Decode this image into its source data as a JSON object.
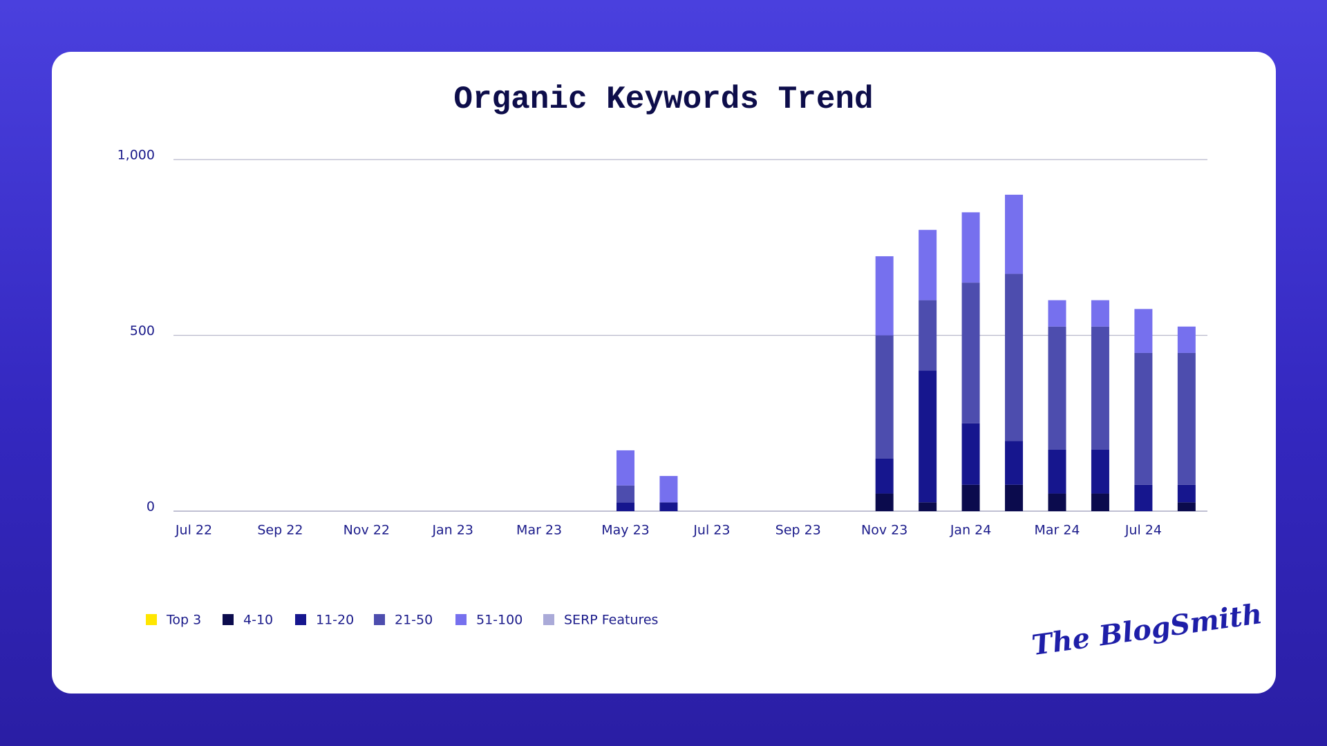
{
  "chart_data": {
    "type": "stacked_bar",
    "title": "Organic Keywords Trend",
    "categories": [
      "Jul 22",
      null,
      "Sep 22",
      null,
      "Nov 22",
      null,
      "Jan 23",
      null,
      "Mar 23",
      null,
      "May 23",
      null,
      "Jul 23",
      null,
      "Sep 23",
      null,
      "Nov 23",
      null,
      "Jan 24",
      null,
      "Mar 24",
      null,
      "Jul 24",
      null
    ],
    "series": [
      {
        "name": "Top 3",
        "color": "#ffe600",
        "values": [
          0,
          0,
          0,
          0,
          0,
          0,
          0,
          0,
          0,
          0,
          0,
          0,
          0,
          0,
          0,
          0,
          0,
          0,
          0,
          0,
          0,
          0,
          0,
          0
        ]
      },
      {
        "name": "4-10",
        "color": "#0b0b4d",
        "values": [
          0,
          0,
          0,
          0,
          0,
          0,
          0,
          0,
          0,
          0,
          0,
          0,
          0,
          0,
          0,
          0,
          50,
          25,
          75,
          75,
          50,
          50,
          0,
          25
        ]
      },
      {
        "name": "11-20",
        "color": "#16168e",
        "values": [
          0,
          0,
          0,
          0,
          0,
          0,
          0,
          0,
          0,
          0,
          25,
          25,
          0,
          0,
          0,
          0,
          100,
          375,
          175,
          125,
          125,
          125,
          75,
          50
        ]
      },
      {
        "name": "21-50",
        "color": "#4d4dae",
        "values": [
          0,
          0,
          0,
          0,
          0,
          0,
          0,
          0,
          0,
          0,
          48,
          0,
          0,
          0,
          0,
          0,
          350,
          200,
          400,
          475,
          350,
          350,
          375,
          375
        ]
      },
      {
        "name": "51-100",
        "color": "#7670ee",
        "values": [
          0,
          0,
          0,
          0,
          0,
          0,
          0,
          0,
          0,
          0,
          100,
          75,
          0,
          0,
          0,
          0,
          225,
          200,
          200,
          225,
          75,
          75,
          125,
          75
        ]
      },
      {
        "name": "SERP Features",
        "color": "#aaaad8",
        "values": [
          0,
          0,
          0,
          0,
          0,
          0,
          0,
          0,
          0,
          0,
          0,
          0,
          0,
          0,
          0,
          0,
          0,
          0,
          0,
          0,
          0,
          0,
          0,
          0
        ]
      }
    ],
    "ylim": [
      0,
      1000
    ],
    "yticks": [
      0,
      500,
      {
        "value": 1000,
        "label": "1,000"
      }
    ],
    "grid": true
  },
  "logo": "The BlogSmith"
}
